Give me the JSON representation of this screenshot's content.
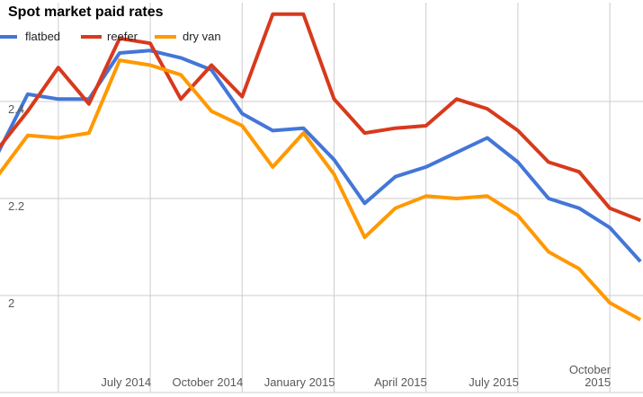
{
  "chart": {
    "title": "Spot market paid rates",
    "legend": [
      {
        "label": "flatbed",
        "color": "#4376d8"
      },
      {
        "label": "reefer",
        "color": "#d8391c"
      },
      {
        "label": "dry van",
        "color": "#ff9900"
      }
    ]
  },
  "chart_data": {
    "type": "line",
    "title": "Spot market paid rates",
    "x": [
      "Feb 2014",
      "Mar 2014",
      "Apr 2014",
      "May 2014",
      "Jun 2014",
      "Jul 2014",
      "Aug 2014",
      "Sep 2014",
      "Oct 2014",
      "Nov 2014",
      "Dec 2014",
      "Jan 2015",
      "Feb 2015",
      "Mar 2015",
      "Apr 2015",
      "May 2015",
      "Jun 2015",
      "Jul 2015",
      "Aug 2015",
      "Sep 2015",
      "Oct 2015",
      "Nov 2015"
    ],
    "series": [
      {
        "name": "flatbed",
        "color": "#4376d8",
        "values": [
          2.29,
          2.415,
          2.405,
          2.405,
          2.5,
          2.505,
          2.49,
          2.465,
          2.375,
          2.34,
          2.345,
          2.28,
          2.19,
          2.245,
          2.265,
          2.295,
          2.325,
          2.275,
          2.2,
          2.18,
          2.14,
          2.07
        ]
      },
      {
        "name": "reefer",
        "color": "#d8391c",
        "values": [
          2.3,
          2.38,
          2.47,
          2.395,
          2.53,
          2.52,
          2.405,
          2.475,
          2.41,
          2.58,
          2.58,
          2.405,
          2.335,
          2.345,
          2.35,
          2.405,
          2.385,
          2.34,
          2.275,
          2.255,
          2.18,
          2.155
        ]
      },
      {
        "name": "dry van",
        "color": "#ff9900",
        "values": [
          2.245,
          2.33,
          2.325,
          2.335,
          2.485,
          2.475,
          2.455,
          2.38,
          2.35,
          2.265,
          2.335,
          2.25,
          2.12,
          2.18,
          2.205,
          2.2,
          2.205,
          2.165,
          2.09,
          2.055,
          1.985,
          1.95
        ]
      }
    ],
    "xlabel": "",
    "ylabel": "",
    "ylim": [
      1.8,
      2.6
    ],
    "grid": true,
    "legend_position": "top",
    "y_ticks": [
      {
        "label": "2.4",
        "value": 2.4
      },
      {
        "label": "2.2",
        "value": 2.2
      },
      {
        "label": "2",
        "value": 2.0
      }
    ],
    "y_extra_gridlines": [
      1.8
    ],
    "x_ticks": [
      {
        "lines": [
          "July 2014"
        ],
        "month_index": 5,
        "wrap": false
      },
      {
        "lines": [
          "October 2014"
        ],
        "month_index": 8,
        "wrap": false
      },
      {
        "lines": [
          "January 2015"
        ],
        "month_index": 11,
        "wrap": false
      },
      {
        "lines": [
          "April 2015"
        ],
        "month_index": 14,
        "wrap": false
      },
      {
        "lines": [
          "July 2015"
        ],
        "month_index": 17,
        "wrap": false
      },
      {
        "lines": [
          "October 2015"
        ],
        "month_index": 20,
        "wrap": true
      }
    ],
    "x_extra_gridline_month_indexes": [
      2
    ],
    "gridline_color": "#cccccc",
    "line_width": 4
  }
}
